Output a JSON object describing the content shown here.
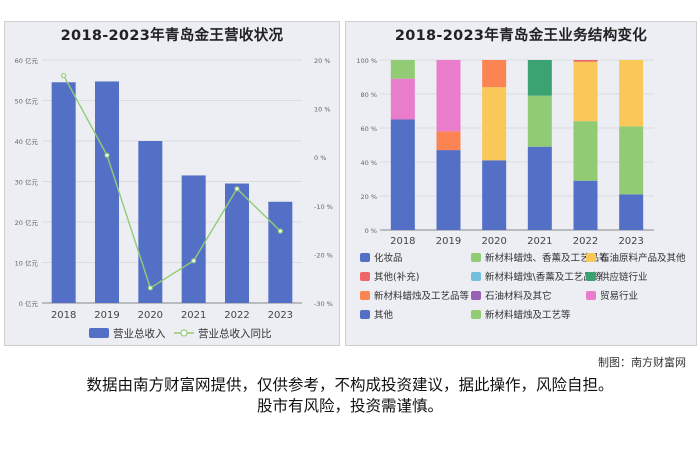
{
  "credit": "制图：南方财富网",
  "disclaimer_line1": "数据由南方财富网提供，仅供参考，不构成投资建议，据此操作，风险自担。",
  "disclaimer_line2": "股市有风险，投资需谨慎。",
  "chart_data": [
    {
      "type": "bar",
      "title": "2018-2023年青岛金王营收状况",
      "categories": [
        "2018",
        "2019",
        "2020",
        "2021",
        "2022",
        "2023"
      ],
      "ylim": [
        0,
        60
      ],
      "y_ticks": [
        "0 亿元",
        "10 亿元",
        "20 亿元",
        "30 亿元",
        "40 亿元",
        "50 亿元",
        "60 亿元"
      ],
      "y2lim": [
        -30,
        20
      ],
      "y2_ticks": [
        "-30 %",
        "-20 %",
        "-10 %",
        "0 %",
        "10 %",
        "20 %"
      ],
      "grid": true,
      "legend_position": "bottom",
      "series": [
        {
          "name": "营业总收入",
          "type": "bar",
          "axis": "left",
          "color": "#5470c6",
          "values": [
            54.5,
            54.7,
            40.0,
            31.5,
            29.5,
            25.0
          ]
        },
        {
          "name": "营业总收入同比",
          "type": "line",
          "axis": "right",
          "color": "#91cc75",
          "values": [
            16.8,
            0.4,
            -26.9,
            -21.3,
            -6.5,
            -15.2
          ]
        }
      ]
    },
    {
      "type": "bar",
      "stacked": true,
      "title": "2018-2023年青岛金王业务结构变化",
      "categories": [
        "2018",
        "2019",
        "2020",
        "2021",
        "2022",
        "2023"
      ],
      "ylim": [
        0,
        100
      ],
      "y_ticks": [
        "0 %",
        "20 %",
        "40 %",
        "60 %",
        "80 %",
        "100 %"
      ],
      "grid": true,
      "legend_position": "bottom",
      "series": [
        {
          "name": "化妆品",
          "color": "#5470c6",
          "values": [
            65,
            47,
            41,
            49,
            29,
            21
          ]
        },
        {
          "name": "新材料蜡烛、香薰及工艺品等",
          "color": "#91cc75",
          "values": [
            0,
            0,
            0,
            30,
            35,
            40
          ]
        },
        {
          "name": "石油原料产品及其他",
          "color": "#fac858",
          "values": [
            0,
            0,
            43,
            0,
            35,
            39
          ]
        },
        {
          "name": "其他(补充)",
          "color": "#ee6666",
          "values": [
            0,
            0,
            0,
            0,
            1,
            0
          ]
        },
        {
          "name": "新材料蜡烛\\香薰及工艺品等",
          "color": "#73c0de",
          "values": [
            0,
            0,
            0,
            0,
            0,
            0
          ]
        },
        {
          "name": "供应链行业",
          "color": "#3ba272",
          "values": [
            0,
            0,
            0,
            21,
            0,
            0
          ]
        },
        {
          "name": "新材料蜡烛及工艺品等",
          "color": "#fc8452",
          "values": [
            0,
            11,
            16,
            0,
            0,
            0
          ]
        },
        {
          "name": "石油材料及其它",
          "color": "#9a60b4",
          "values": [
            0,
            0,
            0,
            0,
            0,
            0
          ]
        },
        {
          "name": "贸易行业",
          "color": "#ea7ccc",
          "values": [
            24,
            42,
            0,
            0,
            0,
            0
          ]
        },
        {
          "name": "其他",
          "color": "#5470c6",
          "values": [
            0,
            0,
            0,
            0,
            0,
            0
          ]
        },
        {
          "name": "新材料蜡烛及工艺等",
          "color": "#91cc75",
          "values": [
            11,
            0,
            0,
            0,
            0,
            0
          ]
        }
      ]
    }
  ]
}
